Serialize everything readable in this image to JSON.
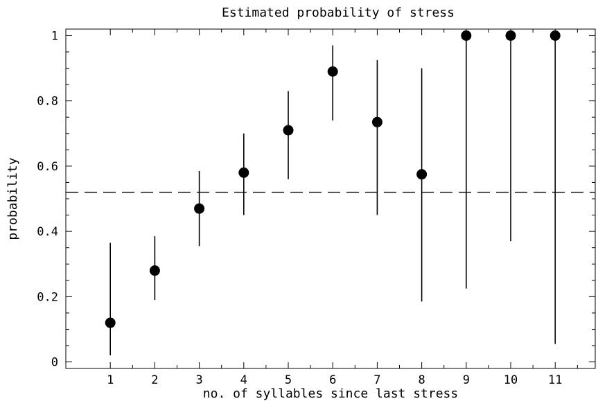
{
  "chart_data": {
    "type": "scatter",
    "title": "Estimated probability of stress",
    "xlabel": "no. of syllables since last stress",
    "ylabel": "probability",
    "xlim": [
      0,
      11.9
    ],
    "ylim": [
      -0.02,
      1.02
    ],
    "x_ticks": [
      "1",
      "2",
      "3",
      "4",
      "5",
      "6",
      "7",
      "8",
      "9",
      "10",
      "11"
    ],
    "y_ticks": [
      "0",
      "0.2",
      "0.4",
      "0.6",
      "0.8",
      "1"
    ],
    "y_tick_values": [
      0,
      0.2,
      0.4,
      0.6,
      0.8,
      1
    ],
    "grid": false,
    "reference_line": {
      "y": 0.52,
      "style": "dashed"
    },
    "series": [
      {
        "x": [
          1,
          2,
          3,
          4,
          5,
          6,
          7,
          8,
          9,
          10,
          11
        ],
        "y": [
          0.12,
          0.28,
          0.47,
          0.58,
          0.71,
          0.89,
          0.735,
          0.575,
          1.0,
          1.0,
          1.0
        ],
        "y_lower": [
          0.02,
          0.19,
          0.355,
          0.45,
          0.56,
          0.74,
          0.45,
          0.185,
          0.225,
          0.37,
          0.055
        ],
        "y_upper": [
          0.365,
          0.385,
          0.585,
          0.7,
          0.83,
          0.97,
          0.925,
          0.9,
          1.0,
          1.0,
          1.0
        ]
      }
    ]
  }
}
